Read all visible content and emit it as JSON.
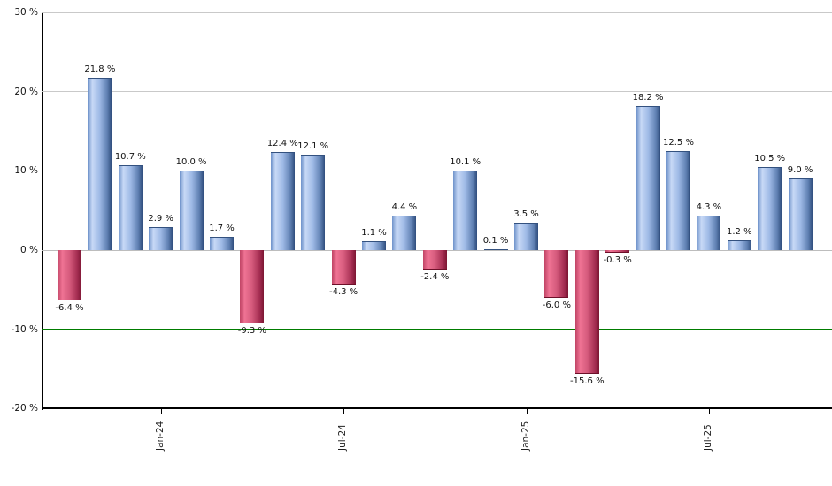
{
  "chart_data": {
    "type": "bar",
    "title": "",
    "xlabel": "",
    "ylabel": "",
    "ylim": [
      -20,
      30
    ],
    "grid": "horizontal",
    "legend": "none",
    "values": [
      -6.4,
      21.8,
      10.7,
      2.9,
      10.0,
      1.7,
      -9.3,
      12.4,
      12.1,
      -4.3,
      1.1,
      4.4,
      -2.4,
      10.1,
      0.1,
      3.5,
      -6.0,
      -15.6,
      -0.3,
      18.2,
      12.5,
      4.3,
      1.2,
      10.5,
      9.0
    ],
    "labels": [
      "-6.4 %",
      "21.8 %",
      "10.7 %",
      "2.9 %",
      "10.0 %",
      "1.7 %",
      "-9.3 %",
      "12.4 %",
      "12.1 %",
      "-4.3 %",
      "1.1 %",
      "4.4 %",
      "-2.4 %",
      "10.1 %",
      "0.1 %",
      "3.5 %",
      "-6.0 %",
      "-15.6 %",
      "-0.3 %",
      "18.2 %",
      "12.5 %",
      "4.3 %",
      "1.2 %",
      "10.5 %",
      "9.0 %"
    ],
    "x_ticks": [
      {
        "label": "Jan-24",
        "bar_index": 3
      },
      {
        "label": "Jul-24",
        "bar_index": 9
      },
      {
        "label": "Jan-25",
        "bar_index": 15
      },
      {
        "label": "Jul-25",
        "bar_index": 21
      }
    ],
    "y_ticks": [
      {
        "label": "30 %",
        "value": 30,
        "line": "gray"
      },
      {
        "label": "20 %",
        "value": 20,
        "line": "gray"
      },
      {
        "label": "10 %",
        "value": 10,
        "line": "green"
      },
      {
        "label": "0 %",
        "value": 0,
        "line": "zero"
      },
      {
        "label": "-10 %",
        "value": -10,
        "line": "green"
      },
      {
        "label": "-20 %",
        "value": -20,
        "line": "axis"
      }
    ],
    "colors": {
      "bar_positive_stops": [
        "#6e92ca",
        "#c8d9f6",
        "#9fbae6",
        "#5f80b2",
        "#2f4d7d"
      ],
      "bar_negative_stops": [
        "#c04465",
        "#ef7394",
        "#d65b7d",
        "#a52e52",
        "#7c1533"
      ],
      "grid_green": "#007c00",
      "grid_gray": "#c9c9c9",
      "zero_line": "#bdbdbd",
      "axis": "#000000",
      "text": "#111111"
    }
  }
}
